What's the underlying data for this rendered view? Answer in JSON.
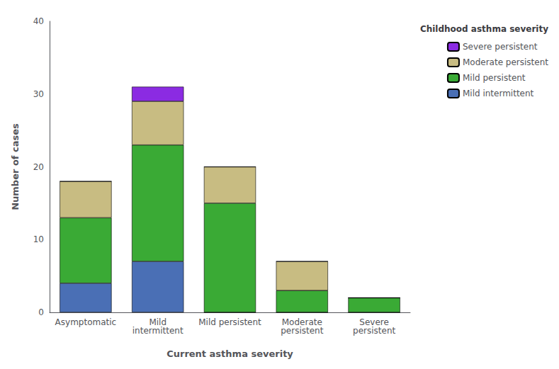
{
  "chart_data": {
    "type": "bar",
    "stacked": true,
    "xlabel": "Current asthma severity",
    "ylabel": "Number of cases",
    "legend_title": "Childhood asthma severity",
    "categories": [
      "Asymptomatic",
      "Mild\nintermittent",
      "Mild persistent",
      "Moderate\npersistent",
      "Severe\npersistent"
    ],
    "series": [
      {
        "name": "Mild intermittent",
        "color": "#4a6fb5",
        "values": [
          4,
          7,
          0,
          0,
          0
        ]
      },
      {
        "name": "Mild persistent",
        "color": "#3aaa35",
        "values": [
          9,
          16,
          15,
          3,
          2
        ]
      },
      {
        "name": "Moderate persistent",
        "color": "#c8bc82",
        "values": [
          5,
          6,
          5,
          4,
          0
        ]
      },
      {
        "name": "Severe persistent",
        "color": "#8b2be2",
        "values": [
          0,
          2,
          0,
          0,
          0
        ]
      }
    ],
    "ylim": [
      0,
      40
    ],
    "yticks": [
      0,
      10,
      20,
      30,
      40
    ],
    "grid": false,
    "legend": "upper right"
  }
}
